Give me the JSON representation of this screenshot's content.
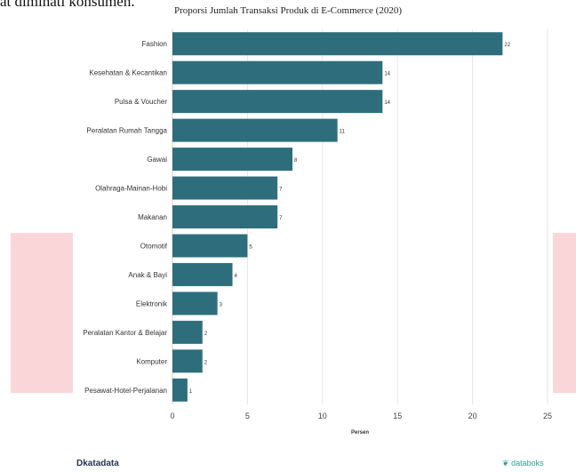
{
  "page_fragment": "at diminati konsumen.",
  "footer": {
    "left_brand": "katadata",
    "left_mark": "D",
    "right_brand": "databoks",
    "right_mark": "❦"
  },
  "chart_data": {
    "type": "bar",
    "orientation": "horizontal",
    "title": "Proporsi Jumlah Transaksi Produk di E-Commerce (2020)",
    "xlabel": "Persen",
    "ylabel": "",
    "xlim": [
      0,
      25
    ],
    "x_ticks": [
      0,
      5,
      10,
      15,
      20,
      25
    ],
    "grid": true,
    "bar_color": "#2e6e7c",
    "categories": [
      "Fashion",
      "Kesehatan & Kecantikan",
      "Pulsa & Voucher",
      "Peralatan Rumah Tangga",
      "Gawai",
      "Olahraga-Mainan-Hobi",
      "Makanan",
      "Otomotif",
      "Anak & Bayi",
      "Elektronik",
      "Peralatan Kantor & Belajar",
      "Komputer",
      "Pesawat-Hotel-Perjalanan"
    ],
    "values": [
      22,
      14,
      14,
      11,
      8,
      7,
      7,
      5,
      4,
      3,
      2,
      2,
      1
    ]
  }
}
